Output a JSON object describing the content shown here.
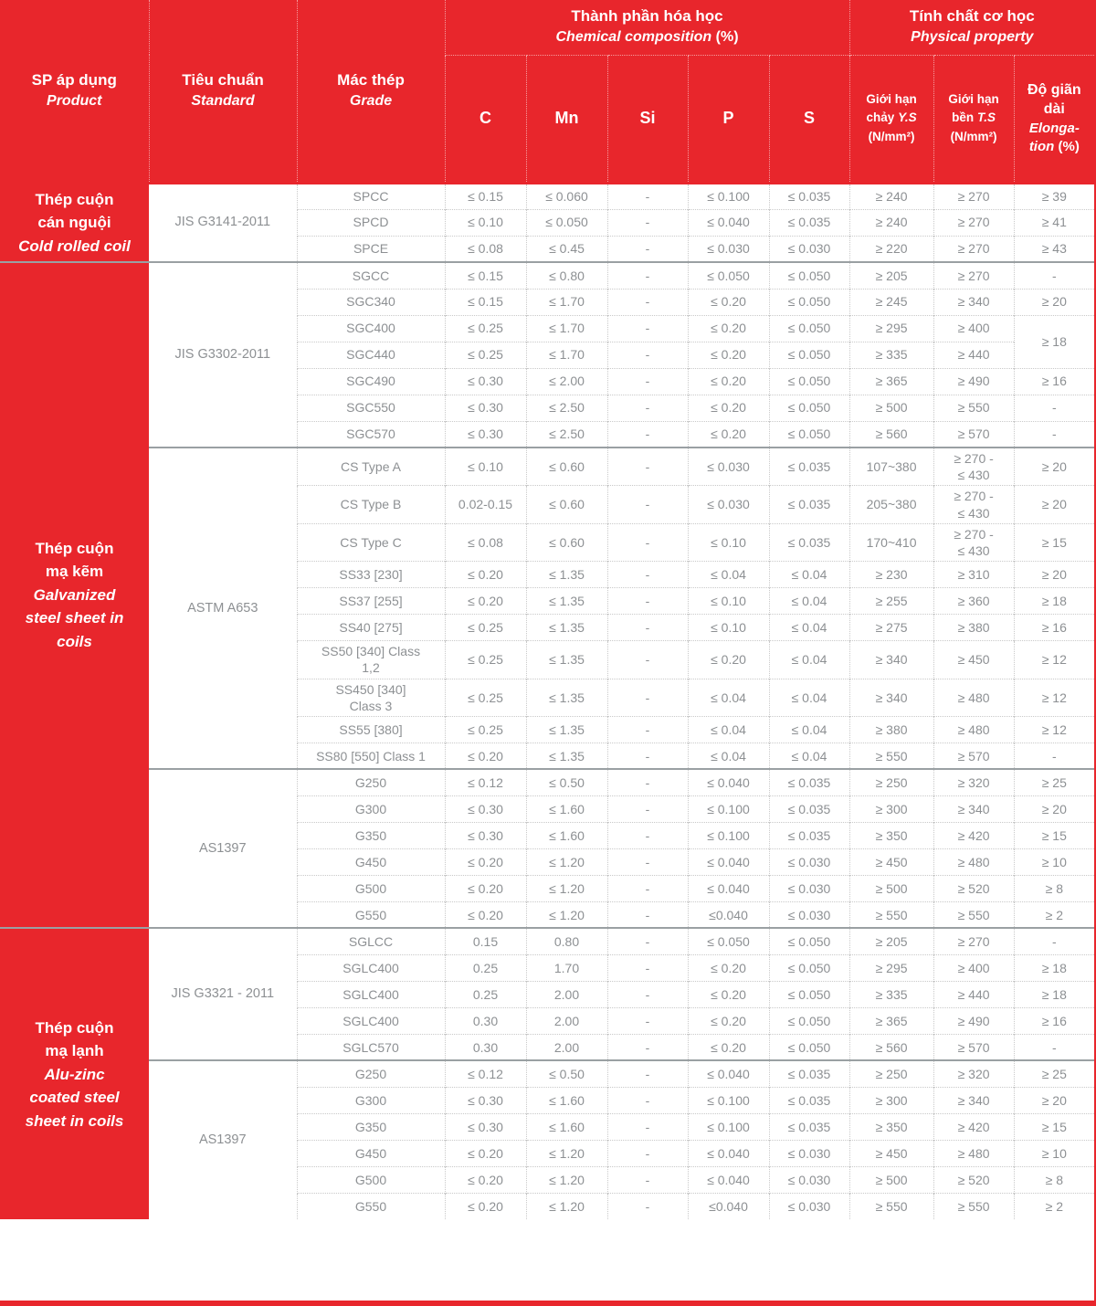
{
  "table": {
    "header": {
      "product": {
        "vi": "SP áp dụng",
        "en": "Product"
      },
      "standard": {
        "vi": "Tiêu chuẩn",
        "en": "Standard"
      },
      "grade": {
        "vi": "Mác thép",
        "en": "Grade"
      },
      "chem_group": {
        "vi": "Thành phần hóa học",
        "en": "Chemical composition",
        "pct": "(%)"
      },
      "phys_group": {
        "vi": "Tính chất cơ học",
        "en": "Physical property"
      },
      "chem_cols": [
        "C",
        "Mn",
        "Si",
        "P",
        "S"
      ],
      "ys": {
        "l1": "Giới hạn",
        "l2": "chảy",
        "l2i": "Y.S",
        "l3": "(N/mm²)"
      },
      "ts": {
        "l1": "Giới hạn",
        "l2": "bền",
        "l2i": "T.S",
        "l3": "(N/mm²)"
      },
      "el": {
        "vi": "Độ giãn dài",
        "en": "Elonga-tion",
        "pct": "(%)"
      }
    },
    "sections": [
      {
        "product": {
          "vi": "Thép cuộn\ncán nguội",
          "en": "Cold rolled coil"
        },
        "groups": [
          {
            "standard": "JIS G3141-2011",
            "rows": [
              {
                "grade": "SPCC",
                "c": "≤ 0.15",
                "mn": "≤ 0.060",
                "si": "-",
                "p": "≤ 0.100",
                "s": "≤ 0.035",
                "ys": "≥ 240",
                "ts": "≥ 270",
                "el": "≥ 39"
              },
              {
                "grade": "SPCD",
                "c": "≤ 0.10",
                "mn": "≤ 0.050",
                "si": "-",
                "p": "≤ 0.040",
                "s": "≤ 0.035",
                "ys": "≥ 240",
                "ts": "≥ 270",
                "el": "≥ 41"
              },
              {
                "grade": "SPCE",
                "c": "≤ 0.08",
                "mn": "≤ 0.45",
                "si": "-",
                "p": "≤ 0.030",
                "s": "≤ 0.030",
                "ys": "≥ 220",
                "ts": "≥ 270",
                "el": "≥ 43"
              }
            ]
          }
        ]
      },
      {
        "product": {
          "vi": "Thép cuộn\nmạ kẽm",
          "en": "Galvanized\nsteel sheet in\ncoils"
        },
        "groups": [
          {
            "standard": "JIS G3302-2011",
            "rows": [
              {
                "grade": "SGCC",
                "c": "≤ 0.15",
                "mn": "≤ 0.80",
                "si": "-",
                "p": "≤ 0.050",
                "s": "≤ 0.050",
                "ys": "≥ 205",
                "ts": "≥ 270",
                "el": "-"
              },
              {
                "grade": "SGC340",
                "c": "≤ 0.15",
                "mn": "≤ 1.70",
                "si": "-",
                "p": "≤ 0.20",
                "s": "≤ 0.050",
                "ys": "≥ 245",
                "ts": "≥ 340",
                "el": "≥ 20"
              },
              {
                "grade": "SGC400",
                "c": "≤ 0.25",
                "mn": "≤ 1.70",
                "si": "-",
                "p": "≤ 0.20",
                "s": "≤ 0.050",
                "ys": "≥ 295",
                "ts": "≥ 400",
                "el": "≥ 18",
                "el_rowspan": 2
              },
              {
                "grade": "SGC440",
                "c": "≤ 0.25",
                "mn": "≤ 1.70",
                "si": "-",
                "p": "≤ 0.20",
                "s": "≤ 0.050",
                "ys": "≥ 335",
                "ts": "≥ 440"
              },
              {
                "grade": "SGC490",
                "c": "≤ 0.30",
                "mn": "≤ 2.00",
                "si": "-",
                "p": "≤ 0.20",
                "s": "≤ 0.050",
                "ys": "≥ 365",
                "ts": "≥ 490",
                "el": "≥ 16"
              },
              {
                "grade": "SGC550",
                "c": "≤ 0.30",
                "mn": "≤ 2.50",
                "si": "-",
                "p": "≤ 0.20",
                "s": "≤ 0.050",
                "ys": "≥ 500",
                "ts": "≥ 550",
                "el": "-"
              },
              {
                "grade": "SGC570",
                "c": "≤ 0.30",
                "mn": "≤ 2.50",
                "si": "-",
                "p": "≤ 0.20",
                "s": "≤ 0.050",
                "ys": "≥ 560",
                "ts": "≥ 570",
                "el": "-"
              }
            ]
          },
          {
            "standard": "ASTM A653",
            "rows": [
              {
                "grade": "CS Type A",
                "c": "≤ 0.10",
                "mn": "≤ 0.60",
                "si": "-",
                "p": "≤ 0.030",
                "s": "≤ 0.035",
                "ys": "107~380",
                "ts": "≥ 270 -\n≤ 430",
                "el": "≥ 20"
              },
              {
                "grade": "CS Type B",
                "c": "0.02-0.15",
                "mn": "≤ 0.60",
                "si": "-",
                "p": "≤ 0.030",
                "s": "≤ 0.035",
                "ys": "205~380",
                "ts": "≥ 270 -\n≤ 430",
                "el": "≥ 20"
              },
              {
                "grade": "CS Type C",
                "c": "≤ 0.08",
                "mn": "≤ 0.60",
                "si": "-",
                "p": "≤ 0.10",
                "s": "≤ 0.035",
                "ys": "170~410",
                "ts": "≥ 270 -\n≤ 430",
                "el": "≥ 15"
              },
              {
                "grade": "SS33 [230]",
                "c": "≤ 0.20",
                "mn": "≤ 1.35",
                "si": "-",
                "p": "≤ 0.04",
                "s": "≤ 0.04",
                "ys": "≥ 230",
                "ts": "≥ 310",
                "el": "≥ 20"
              },
              {
                "grade": "SS37 [255]",
                "c": "≤ 0.20",
                "mn": "≤ 1.35",
                "si": "-",
                "p": "≤ 0.10",
                "s": "≤ 0.04",
                "ys": "≥ 255",
                "ts": "≥ 360",
                "el": "≥ 18"
              },
              {
                "grade": "SS40 [275]",
                "c": "≤ 0.25",
                "mn": "≤ 1.35",
                "si": "-",
                "p": "≤ 0.10",
                "s": "≤ 0.04",
                "ys": "≥ 275",
                "ts": "≥ 380",
                "el": "≥ 16"
              },
              {
                "grade": "SS50 [340] Class\n1,2",
                "c": "≤ 0.25",
                "mn": "≤ 1.35",
                "si": "-",
                "p": "≤ 0.20",
                "s": "≤ 0.04",
                "ys": "≥ 340",
                "ts": "≥ 450",
                "el": "≥ 12"
              },
              {
                "grade": "SS450 [340]\nClass 3",
                "c": "≤ 0.25",
                "mn": "≤ 1.35",
                "si": "-",
                "p": "≤ 0.04",
                "s": "≤ 0.04",
                "ys": "≥ 340",
                "ts": "≥ 480",
                "el": "≥ 12"
              },
              {
                "grade": "SS55 [380]",
                "c": "≤ 0.25",
                "mn": "≤ 1.35",
                "si": "-",
                "p": "≤ 0.04",
                "s": "≤ 0.04",
                "ys": "≥ 380",
                "ts": "≥ 480",
                "el": "≥ 12"
              },
              {
                "grade": "SS80 [550] Class 1",
                "c": "≤ 0.20",
                "mn": "≤ 1.35",
                "si": "-",
                "p": "≤ 0.04",
                "s": "≤ 0.04",
                "ys": "≥ 550",
                "ts": "≥ 570",
                "el": "-"
              }
            ]
          },
          {
            "standard": "AS1397",
            "rows": [
              {
                "grade": "G250",
                "c": "≤ 0.12",
                "mn": "≤ 0.50",
                "si": "-",
                "p": "≤ 0.040",
                "s": "≤ 0.035",
                "ys": "≥ 250",
                "ts": "≥ 320",
                "el": "≥ 25"
              },
              {
                "grade": "G300",
                "c": "≤ 0.30",
                "mn": "≤ 1.60",
                "si": "-",
                "p": "≤ 0.100",
                "s": "≤ 0.035",
                "ys": "≥ 300",
                "ts": "≥ 340",
                "el": "≥ 20"
              },
              {
                "grade": "G350",
                "c": "≤ 0.30",
                "mn": "≤ 1.60",
                "si": "-",
                "p": "≤ 0.100",
                "s": "≤ 0.035",
                "ys": "≥ 350",
                "ts": "≥ 420",
                "el": "≥ 15"
              },
              {
                "grade": "G450",
                "c": "≤ 0.20",
                "mn": "≤ 1.20",
                "si": "-",
                "p": "≤ 0.040",
                "s": "≤ 0.030",
                "ys": "≥ 450",
                "ts": "≥ 480",
                "el": "≥ 10"
              },
              {
                "grade": "G500",
                "c": "≤ 0.20",
                "mn": "≤ 1.20",
                "si": "-",
                "p": "≤ 0.040",
                "s": "≤ 0.030",
                "ys": "≥ 500",
                "ts": "≥ 520",
                "el": "≥ 8"
              },
              {
                "grade": "G550",
                "c": "≤ 0.20",
                "mn": "≤ 1.20",
                "si": "-",
                "p": "≤0.040",
                "s": "≤ 0.030",
                "ys": "≥ 550",
                "ts": "≥ 550",
                "el": "≥ 2"
              }
            ]
          }
        ]
      },
      {
        "product": {
          "vi": "Thép cuộn\nmạ lạnh",
          "en": "Alu-zinc\ncoated steel\nsheet in coils"
        },
        "groups": [
          {
            "standard": "JIS G3321 - 2011",
            "rows": [
              {
                "grade": "SGLCC",
                "c": "0.15",
                "mn": "0.80",
                "si": "-",
                "p": "≤ 0.050",
                "s": "≤ 0.050",
                "ys": "≥ 205",
                "ts": "≥ 270",
                "el": "-"
              },
              {
                "grade": "SGLC400",
                "c": "0.25",
                "mn": "1.70",
                "si": "-",
                "p": "≤ 0.20",
                "s": "≤ 0.050",
                "ys": "≥ 295",
                "ts": "≥ 400",
                "el": "≥ 18"
              },
              {
                "grade": "SGLC400",
                "c": "0.25",
                "mn": "2.00",
                "si": "-",
                "p": "≤ 0.20",
                "s": "≤ 0.050",
                "ys": "≥ 335",
                "ts": "≥ 440",
                "el": "≥ 18"
              },
              {
                "grade": "SGLC400",
                "c": "0.30",
                "mn": "2.00",
                "si": "-",
                "p": "≤ 0.20",
                "s": "≤ 0.050",
                "ys": "≥ 365",
                "ts": "≥ 490",
                "el": "≥ 16"
              },
              {
                "grade": "SGLC570",
                "c": "0.30",
                "mn": "2.00",
                "si": "-",
                "p": "≤ 0.20",
                "s": "≤ 0.050",
                "ys": "≥ 560",
                "ts": "≥ 570",
                "el": "-"
              }
            ]
          },
          {
            "standard": "AS1397",
            "rows": [
              {
                "grade": "G250",
                "c": "≤ 0.12",
                "mn": "≤ 0.50",
                "si": "-",
                "p": "≤ 0.040",
                "s": "≤ 0.035",
                "ys": "≥ 250",
                "ts": "≥ 320",
                "el": "≥ 25"
              },
              {
                "grade": "G300",
                "c": "≤ 0.30",
                "mn": "≤ 1.60",
                "si": "-",
                "p": "≤ 0.100",
                "s": "≤ 0.035",
                "ys": "≥ 300",
                "ts": "≥ 340",
                "el": "≥ 20"
              },
              {
                "grade": "G350",
                "c": "≤ 0.30",
                "mn": "≤ 1.60",
                "si": "-",
                "p": "≤ 0.100",
                "s": "≤ 0.035",
                "ys": "≥ 350",
                "ts": "≥ 420",
                "el": "≥ 15"
              },
              {
                "grade": "G450",
                "c": "≤ 0.20",
                "mn": "≤ 1.20",
                "si": "-",
                "p": "≤ 0.040",
                "s": "≤ 0.030",
                "ys": "≥ 450",
                "ts": "≥ 480",
                "el": "≥ 10"
              },
              {
                "grade": "G500",
                "c": "≤ 0.20",
                "mn": "≤ 1.20",
                "si": "-",
                "p": "≤ 0.040",
                "s": "≤ 0.030",
                "ys": "≥ 500",
                "ts": "≥ 520",
                "el": "≥ 8"
              },
              {
                "grade": "G550",
                "c": "≤ 0.20",
                "mn": "≤ 1.20",
                "si": "-",
                "p": "≤0.040",
                "s": "≤ 0.030",
                "ys": "≥ 550",
                "ts": "≥ 550",
                "el": "≥ 2"
              }
            ]
          }
        ]
      }
    ],
    "colors": {
      "accent_red": "#e8262c",
      "body_text": "#8d9093"
    }
  }
}
